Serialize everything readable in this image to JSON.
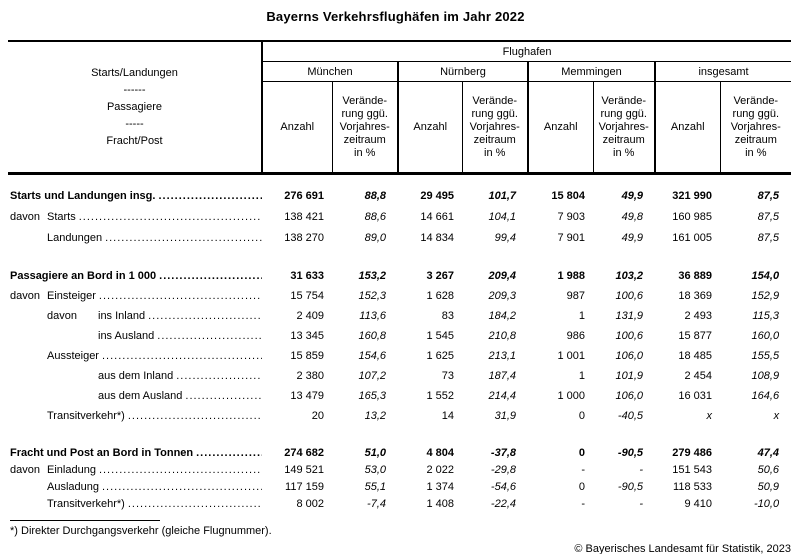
{
  "title": "Bayerns Verkehrsflughäfen im Jahr 2022",
  "table": {
    "stub_header_lines": [
      "Starts/Landungen",
      "------",
      "Passagiere",
      "-----",
      "Fracht/Post"
    ],
    "top_header": "Flughafen",
    "groups": [
      "München",
      "Nürnberg",
      "Memmingen",
      "insgesamt"
    ],
    "anzahl_label": "Anzahl",
    "change_header_lines": [
      "Verände-",
      "rung ggü.",
      "Vorjahres-",
      "zeitraum",
      "in %"
    ],
    "sections": [
      {
        "rows": [
          {
            "prefix": "",
            "prefix_indent": 0,
            "label": "Starts und Landungen insg.",
            "indent": 0,
            "bold": true,
            "values": [
              "276 691",
              "88,8",
              "29 495",
              "101,7",
              "15 804",
              "49,9",
              "321 990",
              "87,5"
            ]
          },
          {
            "prefix": "davon",
            "prefix_indent": 0,
            "label": "Starts",
            "indent": 1,
            "bold": false,
            "values": [
              "138 421",
              "88,6",
              "14 661",
              "104,1",
              "7 903",
              "49,8",
              "160 985",
              "87,5"
            ]
          },
          {
            "prefix": "",
            "prefix_indent": 0,
            "label": "Landungen",
            "indent": 1,
            "bold": false,
            "values": [
              "138 270",
              "89,0",
              "14 834",
              "99,4",
              "7 901",
              "49,9",
              "161 005",
              "87,5"
            ]
          }
        ]
      },
      {
        "rows": [
          {
            "prefix": "",
            "prefix_indent": 0,
            "label": "Passagiere an Bord in 1 000",
            "indent": 0,
            "bold": true,
            "values": [
              "31 633",
              "153,2",
              "3 267",
              "209,4",
              "1 988",
              "103,2",
              "36 889",
              "154,0"
            ]
          },
          {
            "prefix": "davon",
            "prefix_indent": 0,
            "label": "Einsteiger",
            "indent": 1,
            "bold": false,
            "values": [
              "15 754",
              "152,3",
              "1 628",
              "209,3",
              "987",
              "100,6",
              "18 369",
              "152,9"
            ]
          },
          {
            "prefix": "davon",
            "prefix_indent": 1,
            "label": "ins Inland",
            "indent": 2,
            "bold": false,
            "values": [
              "2 409",
              "113,6",
              "83",
              "184,2",
              "1",
              "131,9",
              "2 493",
              "115,3"
            ]
          },
          {
            "prefix": "",
            "prefix_indent": 0,
            "label": "ins Ausland",
            "indent": 2,
            "bold": false,
            "values": [
              "13 345",
              "160,8",
              "1 545",
              "210,8",
              "986",
              "100,6",
              "15 877",
              "160,0"
            ]
          },
          {
            "prefix": "",
            "prefix_indent": 0,
            "label": "Aussteiger",
            "indent": 1,
            "bold": false,
            "values": [
              "15 859",
              "154,6",
              "1 625",
              "213,1",
              "1 001",
              "106,0",
              "18 485",
              "155,5"
            ]
          },
          {
            "prefix": "",
            "prefix_indent": 0,
            "label": "aus dem Inland",
            "indent": 2,
            "bold": false,
            "values": [
              "2 380",
              "107,2",
              "73",
              "187,4",
              "1",
              "101,9",
              "2 454",
              "108,9"
            ]
          },
          {
            "prefix": "",
            "prefix_indent": 0,
            "label": "aus dem Ausland",
            "indent": 2,
            "bold": false,
            "values": [
              "13 479",
              "165,3",
              "1 552",
              "214,4",
              "1 000",
              "106,0",
              "16 031",
              "164,6"
            ]
          },
          {
            "prefix": "",
            "prefix_indent": 0,
            "label": "Transitverkehr*)",
            "indent": 1,
            "bold": false,
            "values": [
              "20",
              "13,2",
              "14",
              "31,9",
              "0",
              "-40,5",
              "x",
              "x"
            ]
          }
        ]
      },
      {
        "rows": [
          {
            "prefix": "",
            "prefix_indent": 0,
            "label": "Fracht und Post an Bord in Tonnen",
            "indent": 0,
            "bold": true,
            "values": [
              "274 682",
              "51,0",
              "4 804",
              "-37,8",
              "0",
              "-90,5",
              "279 486",
              "47,4"
            ]
          },
          {
            "prefix": "davon",
            "prefix_indent": 0,
            "label": "Einladung",
            "indent": 1,
            "bold": false,
            "values": [
              "149 521",
              "53,0",
              "2 022",
              "-29,8",
              "-",
              "-",
              "151 543",
              "50,6"
            ]
          },
          {
            "prefix": "",
            "prefix_indent": 0,
            "label": "Ausladung",
            "indent": 1,
            "bold": false,
            "values": [
              "117 159",
              "55,1",
              "1 374",
              "-54,6",
              "0",
              "-90,5",
              "118 533",
              "50,9"
            ]
          },
          {
            "prefix": "",
            "prefix_indent": 0,
            "label": "Transitverkehr*)",
            "indent": 1,
            "bold": false,
            "values": [
              "8 002",
              "-7,4",
              "1 408",
              "-22,4",
              "-",
              "-",
              "9 410",
              "-10,0"
            ]
          }
        ]
      }
    ]
  },
  "footnote": "*) Direkter Durchgangsverkehr (gleiche Flugnummer).",
  "copyright": "© Bayerisches Landesamt für Statistik, 2023"
}
